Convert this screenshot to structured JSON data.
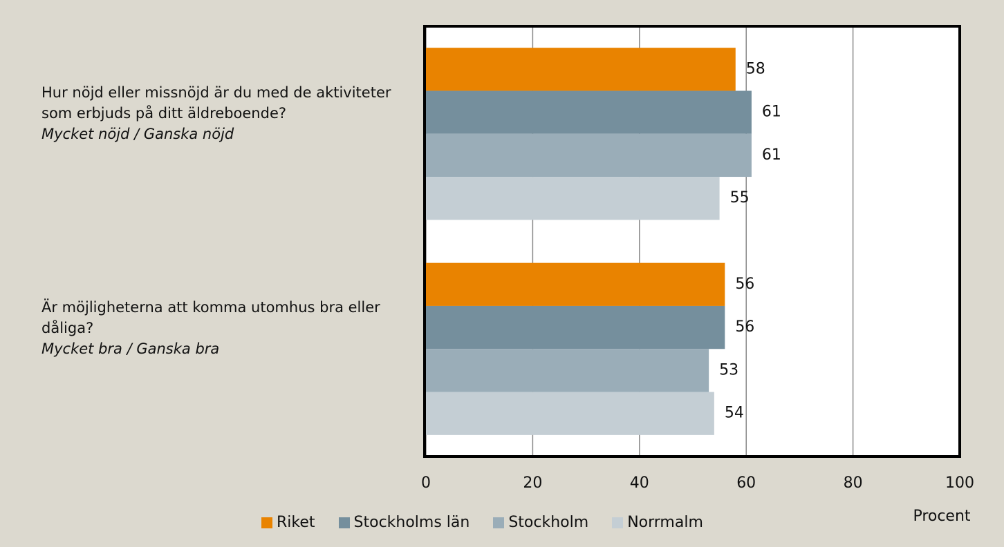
{
  "chart_data": {
    "type": "bar",
    "orientation": "horizontal",
    "categories": [
      "Hur nöjd eller missnöjd är du med de aktiviteter som erbjuds på ditt äldreboende?",
      "Är möjligheterna att komma utomhus bra eller dåliga?"
    ],
    "category_notes": [
      "Mycket nöjd / Ganska nöjd",
      "Mycket bra / Ganska bra"
    ],
    "series": [
      {
        "name": "Riket",
        "color": "#e98300",
        "values": [
          58,
          56
        ]
      },
      {
        "name": "Stockholms län",
        "color": "#758f9d",
        "values": [
          61,
          56
        ]
      },
      {
        "name": "Stockholm",
        "color": "#9aadb8",
        "values": [
          61,
          53
        ]
      },
      {
        "name": "Norrmalm",
        "color": "#c4ced4",
        "values": [
          55,
          54
        ]
      }
    ],
    "x_label": "Procent",
    "xlim": [
      0,
      100
    ],
    "xticks": [
      0,
      20,
      40,
      60,
      80,
      100
    ],
    "grid": true,
    "legend": "bottom"
  }
}
